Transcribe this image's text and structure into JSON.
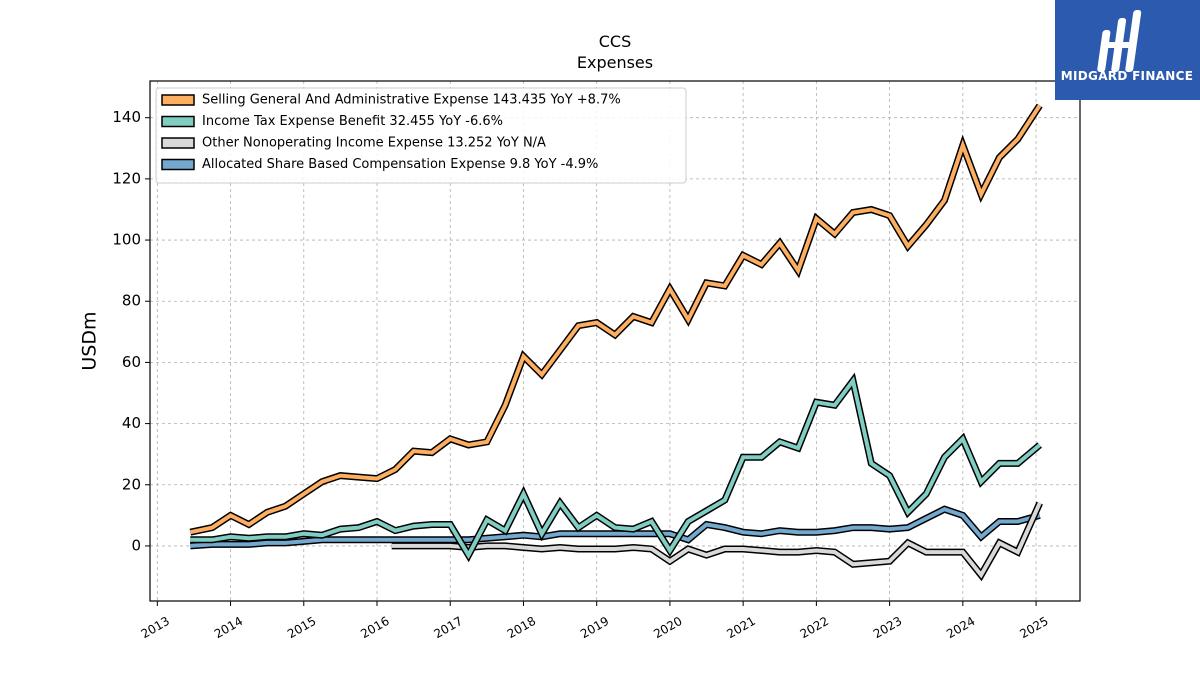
{
  "logo": {
    "text": "MIDGARD FINANCE",
    "background": "#2b5aae"
  },
  "chart_data": {
    "type": "line",
    "title": "CCS",
    "subtitle": "Expenses",
    "xlabel": "",
    "ylabel": "USDm",
    "xlim": [
      2012.9,
      2025.6
    ],
    "ylim": [
      -18,
      152
    ],
    "yticks": [
      0,
      20,
      40,
      60,
      80,
      100,
      120,
      140
    ],
    "xticks": [
      "2013",
      "2014",
      "2015",
      "2016",
      "2017",
      "2018",
      "2019",
      "2020",
      "2021",
      "2022",
      "2023",
      "2024",
      "2025"
    ],
    "grid": true,
    "legend_position": "top-left",
    "series": [
      {
        "name": "Selling General And Administrative Expense  143.435 YoY +8.7%",
        "color": "#fdae61",
        "x": [
          2013.45,
          2013.75,
          2014.0,
          2014.25,
          2014.5,
          2014.75,
          2015.0,
          2015.25,
          2015.5,
          2015.75,
          2016.0,
          2016.25,
          2016.5,
          2016.75,
          2017.0,
          2017.25,
          2017.5,
          2017.75,
          2018.0,
          2018.25,
          2018.5,
          2018.75,
          2019.0,
          2019.25,
          2019.5,
          2019.75,
          2020.0,
          2020.25,
          2020.5,
          2020.75,
          2021.0,
          2021.25,
          2021.5,
          2021.75,
          2022.0,
          2022.25,
          2022.5,
          2022.75,
          2023.0,
          2023.25,
          2023.5,
          2023.75,
          2024.0,
          2024.25,
          2024.5,
          2024.75,
          2025.05
        ],
        "y": [
          4.5,
          6,
          10,
          7,
          11,
          13,
          17,
          21,
          23,
          22.5,
          22,
          25,
          31,
          30.5,
          35,
          33,
          34,
          46,
          62,
          56,
          64,
          72,
          73,
          69,
          75,
          73,
          84,
          74,
          86,
          85,
          95,
          92,
          99,
          90,
          107,
          102,
          109,
          110,
          108,
          98,
          105,
          113,
          131,
          115,
          127,
          133,
          144
        ]
      },
      {
        "name": "Income Tax Expense Benefit  32.455 YoY -6.6%",
        "color": "#80cdc1",
        "x": [
          2013.45,
          2013.75,
          2014.0,
          2014.25,
          2014.5,
          2014.75,
          2015.0,
          2015.25,
          2015.5,
          2015.75,
          2016.0,
          2016.25,
          2016.5,
          2016.75,
          2017.0,
          2017.25,
          2017.5,
          2017.75,
          2018.0,
          2018.25,
          2018.5,
          2018.75,
          2019.0,
          2019.25,
          2019.5,
          2019.75,
          2020.0,
          2020.25,
          2020.5,
          2020.75,
          2021.0,
          2021.25,
          2021.5,
          2021.75,
          2022.0,
          2022.25,
          2022.5,
          2022.75,
          2023.0,
          2023.25,
          2023.5,
          2023.75,
          2024.0,
          2024.25,
          2024.5,
          2024.75,
          2025.05
        ],
        "y": [
          2,
          2,
          3,
          2.5,
          3,
          3,
          4,
          3.5,
          5.5,
          6,
          8,
          5,
          6.5,
          7,
          7,
          -3,
          8.5,
          5,
          17,
          4,
          14,
          6,
          10,
          6,
          5.5,
          8,
          -1.5,
          8,
          11.5,
          15,
          29,
          29,
          34,
          32,
          47,
          46,
          54,
          27,
          23,
          11,
          17,
          29,
          35,
          21,
          27,
          27,
          33
        ]
      },
      {
        "name": "Other Nonoperating Income Expense  13.252 YoY N/A",
        "color": "#d9d9d9",
        "x": [
          2016.2,
          2016.5,
          2016.75,
          2017.0,
          2017.25,
          2017.5,
          2017.75,
          2018.0,
          2018.25,
          2018.5,
          2018.75,
          2019.0,
          2019.25,
          2019.5,
          2019.75,
          2020.0,
          2020.25,
          2020.5,
          2020.75,
          2021.0,
          2021.25,
          2021.5,
          2021.75,
          2022.0,
          2022.25,
          2022.5,
          2022.75,
          2023.0,
          2023.25,
          2023.5,
          2023.75,
          2024.0,
          2024.25,
          2024.5,
          2024.75,
          2025.05
        ],
        "y": [
          0,
          0,
          0,
          0,
          -0.5,
          0,
          0,
          -0.5,
          -1,
          -0.5,
          -1,
          -1,
          -1,
          -0.5,
          -1,
          -5,
          -1,
          -3,
          -1,
          -1,
          -1.5,
          -2,
          -2,
          -1.5,
          -2,
          -6,
          -5.5,
          -5,
          1,
          -2,
          -2,
          -2,
          -9.5,
          1,
          -2,
          14
        ]
      },
      {
        "name": "Allocated Share Based Compensation Expense  9.8 YoY -4.9%",
        "color": "#74a9cf",
        "x": [
          2013.45,
          2013.75,
          2014.0,
          2014.25,
          2014.5,
          2014.75,
          2015.0,
          2015.25,
          2015.5,
          2015.75,
          2016.0,
          2016.25,
          2016.5,
          2016.75,
          2017.0,
          2017.25,
          2017.5,
          2017.75,
          2018.0,
          2018.25,
          2018.5,
          2018.75,
          2019.0,
          2019.25,
          2019.5,
          2019.75,
          2020.0,
          2020.25,
          2020.5,
          2020.75,
          2021.0,
          2021.25,
          2021.5,
          2021.75,
          2022.0,
          2022.25,
          2022.5,
          2022.75,
          2023.0,
          2023.25,
          2023.5,
          2023.75,
          2024.0,
          2024.25,
          2024.5,
          2024.75,
          2025.05
        ],
        "y": [
          0,
          0.5,
          0.5,
          0.5,
          1,
          1,
          1.5,
          2,
          2,
          2,
          2,
          2,
          2,
          2,
          2,
          2,
          2.5,
          3,
          3.5,
          3,
          4,
          4,
          4,
          4,
          4,
          4,
          4,
          2,
          7,
          6,
          4.5,
          4,
          5,
          4.5,
          4.5,
          5,
          6,
          6,
          5.5,
          6,
          9,
          12,
          10,
          3,
          8,
          8,
          10
        ]
      }
    ]
  }
}
